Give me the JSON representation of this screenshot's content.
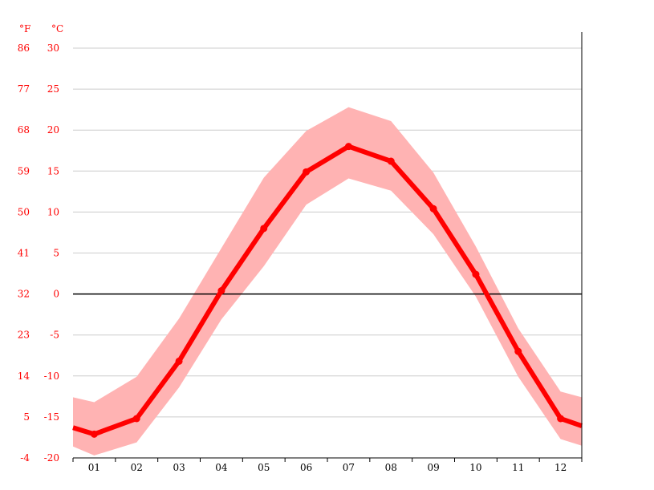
{
  "chart_data": {
    "type": "line",
    "title": "",
    "xlabel": "",
    "ylabel": "",
    "categories": [
      "01",
      "02",
      "03",
      "04",
      "05",
      "06",
      "07",
      "08",
      "09",
      "10",
      "11",
      "12"
    ],
    "series": [
      {
        "role": "mean",
        "values": [
          -17.1,
          -15.2,
          -8.2,
          0.4,
          8.0,
          14.9,
          18.0,
          16.2,
          10.4,
          2.4,
          -7.0,
          -15.2
        ]
      },
      {
        "role": "high",
        "values": [
          -13.2,
          -10.1,
          -3.0,
          5.6,
          14.2,
          19.9,
          22.8,
          21.1,
          14.8,
          5.8,
          -4.2,
          -11.9
        ]
      },
      {
        "role": "low",
        "values": [
          -19.7,
          -18.1,
          -11.4,
          -3.1,
          3.4,
          10.9,
          14.1,
          12.6,
          7.3,
          -0.3,
          -10.1,
          -17.7
        ]
      }
    ],
    "edge_left": {
      "mean": -16.3,
      "high": -12.6,
      "low": -18.6
    },
    "edge_right": {
      "mean": -16.1,
      "high": -12.6,
      "low": -18.5
    },
    "ylim": [
      -20,
      30
    ],
    "y_ticks_c": [
      "30",
      "25",
      "20",
      "15",
      "10",
      "5",
      "0",
      "-5",
      "-10",
      "-15",
      "-20"
    ],
    "y_ticks_f": [
      "86",
      "77",
      "68",
      "59",
      "50",
      "41",
      "32",
      "23",
      "14",
      "5",
      "-4"
    ],
    "unit_f": "°F",
    "unit_c": "°C",
    "grid": true,
    "colors": {
      "line": "#ff0000",
      "band": "#ffb3b3",
      "grid": "#cccccc",
      "zero": "#000000",
      "tick_text": "#ff0000"
    }
  }
}
